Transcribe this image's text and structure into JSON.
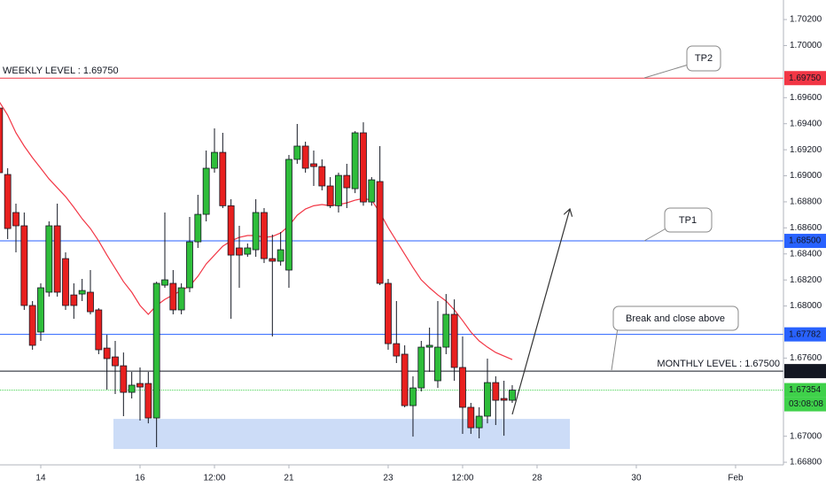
{
  "chart_data": {
    "type": "candlestick",
    "categories": [
      null,
      null,
      null,
      null,
      null,
      "14",
      null,
      null,
      null,
      null,
      null,
      null,
      null,
      null,
      null,
      null,
      null,
      "16",
      null,
      null,
      null,
      null,
      null,
      null,
      null,
      null,
      "12:00",
      null,
      null,
      null,
      null,
      null,
      null,
      null,
      null,
      "21",
      null,
      null,
      null,
      null,
      null,
      null,
      null,
      null,
      null,
      null,
      null,
      "23",
      null,
      null,
      null,
      null,
      null,
      null,
      null,
      null,
      "12:00",
      null,
      null,
      null,
      null,
      null,
      null,
      null,
      null,
      "28",
      null,
      null,
      null,
      null,
      null,
      null,
      null,
      null,
      null,
      null,
      null,
      "30",
      null,
      null,
      null,
      null,
      null,
      null,
      null,
      null,
      null,
      null,
      null,
      "Feb",
      null,
      null,
      null,
      null,
      null
    ],
    "open": [
      1.6952,
      1.6901,
      1.68718,
      1.68616,
      1.68004,
      1.678,
      1.68106,
      1.68616,
      1.68364,
      1.68085,
      1.68092,
      1.68106,
      1.6797,
      1.67677,
      1.67609,
      1.67541,
      1.67337,
      1.67405,
      1.67405,
      1.6714,
      1.6816,
      1.68174,
      1.6797,
      1.6814,
      1.68493,
      1.68704,
      1.69058,
      1.6918,
      1.6877,
      1.68446,
      1.68398,
      1.68432,
      1.68718,
      1.68364,
      1.68344,
      1.68276,
      1.69126,
      1.69228,
      1.69092,
      1.69071,
      1.68922,
      1.6877,
      1.69003,
      1.68901,
      1.6933,
      1.68799,
      1.68956,
      1.68174,
      1.67711,
      1.6763,
      1.67235,
      1.67371,
      1.67684,
      1.67426,
      1.67684,
      1.67936,
      1.67528,
      1.67222,
      1.67065,
      1.67154,
      1.67412,
      1.6729,
      1.67276,
      null,
      null,
      null,
      null,
      null,
      null,
      null,
      null,
      null,
      null,
      null,
      null,
      null,
      null,
      null,
      null,
      null,
      null,
      null,
      null,
      null,
      null,
      null,
      null,
      null,
      null,
      null,
      null,
      null,
      null,
      null,
      null
    ],
    "high": [
      1.69547,
      1.69058,
      1.68786,
      1.68718,
      1.68038,
      1.68174,
      1.6865,
      1.68786,
      1.68412,
      1.68174,
      1.68208,
      1.68276,
      1.67983,
      1.67779,
      1.67732,
      1.67643,
      1.67494,
      1.67528,
      1.67494,
      1.68187,
      1.68718,
      1.68276,
      1.68174,
      1.68684,
      1.68854,
      1.69194,
      1.69364,
      1.6933,
      1.6882,
      1.68616,
      1.6848,
      1.6882,
      1.68752,
      1.68548,
      1.68568,
      1.6916,
      1.69398,
      1.69262,
      1.69194,
      1.69126,
      1.6899,
      1.69024,
      1.69092,
      1.69343,
      1.69411,
      1.6899,
      1.69228,
      1.68208,
      1.68038,
      1.67698,
      1.6746,
      1.67732,
      1.67834,
      1.68038,
      1.68092,
      1.68051,
      1.67766,
      1.67256,
      1.67222,
      1.67596,
      1.6746,
      1.67426,
      1.67392,
      null,
      null,
      null,
      null,
      null,
      null,
      null,
      null,
      null,
      null,
      null,
      null,
      null,
      null,
      null,
      null,
      null,
      null,
      null,
      null,
      null,
      null,
      null,
      null,
      null,
      null,
      null,
      null,
      null,
      null,
      null,
      null
    ],
    "low": [
      1.6899,
      1.68514,
      1.68412,
      1.6797,
      1.67664,
      1.67732,
      1.68072,
      1.68072,
      1.6797,
      1.67902,
      1.68038,
      1.67936,
      1.6763,
      1.67358,
      1.67324,
      1.67154,
      1.6729,
      1.6712,
      1.67099,
      1.66916,
      1.6814,
      1.67936,
      1.67936,
      1.68106,
      1.68446,
      1.6865,
      1.69024,
      1.68752,
      1.67902,
      1.6814,
      1.68378,
      1.68378,
      1.6833,
      1.67766,
      1.6831,
      1.6814,
      1.69092,
      1.69024,
      1.68922,
      1.68888,
      1.68752,
      1.68718,
      1.68752,
      1.68867,
      1.6877,
      1.6877,
      1.6816,
      1.67664,
      1.67562,
      1.67222,
      1.66997,
      1.67344,
      1.67494,
      1.67371,
      1.6763,
      1.67426,
      1.67018,
      1.67018,
      1.66984,
      1.67099,
      1.67086,
      1.67004,
      1.67256,
      null,
      null,
      null,
      null,
      null,
      null,
      null,
      null,
      null,
      null,
      null,
      null,
      null,
      null,
      null,
      null,
      null,
      null,
      null,
      null,
      null,
      null,
      null,
      null,
      null,
      null,
      null,
      null,
      null,
      null,
      null,
      null
    ],
    "close": [
      1.69024,
      1.68595,
      1.68616,
      1.68004,
      1.67698,
      1.6814,
      1.68616,
      1.68106,
      1.68004,
      1.68004,
      1.68119,
      1.67956,
      1.67664,
      1.67596,
      1.67541,
      1.67337,
      1.67392,
      1.67378,
      1.6714,
      1.68174,
      1.68201,
      1.6797,
      1.6814,
      1.68493,
      1.68704,
      1.69058,
      1.6918,
      1.6877,
      1.68391,
      1.68391,
      1.68446,
      1.68718,
      1.68364,
      1.68344,
      1.68432,
      1.69126,
      1.69228,
      1.69058,
      1.69071,
      1.68922,
      1.6877,
      1.69003,
      1.68908,
      1.6933,
      1.68799,
      1.68969,
      1.68174,
      1.67711,
      1.67616,
      1.67235,
      1.67371,
      1.67684,
      1.67698,
      1.67684,
      1.67936,
      1.67528,
      1.67222,
      1.67065,
      1.67154,
      1.67412,
      1.67276,
      1.67276,
      1.67354,
      null,
      null,
      null,
      null,
      null,
      null,
      null,
      null,
      null,
      null,
      null,
      null,
      null,
      null,
      null,
      null,
      null,
      null,
      null,
      null,
      null,
      null,
      null,
      null,
      null,
      null,
      null,
      null,
      null,
      null,
      null,
      null
    ],
    "up_color": "#2ebd3a",
    "down_color": "#e8201f",
    "ma": {
      "color": "#f23645",
      "values": [
        1.69568,
        1.69466,
        1.6933,
        1.69228,
        1.69139,
        1.69058,
        1.68976,
        1.68908,
        1.6884,
        1.68758,
        1.6867,
        1.68595,
        1.685,
        1.68391,
        1.68289,
        1.68187,
        1.68106,
        1.68004,
        1.67936,
        1.68004,
        1.68051,
        1.68085,
        1.68119,
        1.68153,
        1.68228,
        1.68323,
        1.68391,
        1.68459,
        1.685,
        1.68527,
        1.68541,
        1.68541,
        1.68527,
        1.68534,
        1.68561,
        1.68616,
        1.68697,
        1.68745,
        1.6877,
        1.68779,
        1.6877,
        1.68779,
        1.68792,
        1.68813,
        1.68826,
        1.68813,
        1.68718,
        1.68602,
        1.685,
        1.68398,
        1.68296,
        1.68201,
        1.6814,
        1.68085,
        1.68038,
        1.6797,
        1.67888,
        1.678,
        1.67732,
        1.67684,
        1.67643,
        1.67616,
        1.67589,
        null,
        null,
        null,
        null,
        null,
        null,
        null,
        null,
        null,
        null,
        null,
        null,
        null,
        null,
        null,
        null,
        null,
        null,
        null,
        null,
        null,
        null,
        null,
        null,
        null,
        null,
        null,
        null,
        null,
        null,
        null,
        null
      ]
    },
    "ylim": [
      1.6678,
      1.7035
    ],
    "yticks": [
      {
        "value": 1.702,
        "label": "1.70200"
      },
      {
        "value": 1.7,
        "label": "1.70000"
      },
      {
        "value": 1.696,
        "label": "1.69600"
      },
      {
        "value": 1.694,
        "label": "1.69400"
      },
      {
        "value": 1.692,
        "label": "1.69200"
      },
      {
        "value": 1.69,
        "label": "1.69000"
      },
      {
        "value": 1.688,
        "label": "1.68800"
      },
      {
        "value": 1.686,
        "label": "1.68600"
      },
      {
        "value": 1.684,
        "label": "1.68400"
      },
      {
        "value": 1.682,
        "label": "1.68200"
      },
      {
        "value": 1.68,
        "label": "1.68000"
      },
      {
        "value": 1.676,
        "label": "1.67600"
      },
      {
        "value": 1.67,
        "label": "1.67000"
      },
      {
        "value": 1.668,
        "label": "1.66800"
      }
    ],
    "levels": [
      {
        "value": 1.6975,
        "label": "1.69750",
        "color": "#f23645",
        "text": "WEEKLY LEVEL : 1.69750",
        "text_side": "left"
      },
      {
        "value": 1.685,
        "label": "1.68500",
        "color": "#2962ff"
      },
      {
        "value": 1.67782,
        "label": "1.67782",
        "color": "#2962ff"
      },
      {
        "value": 1.675,
        "label": "1.67500",
        "color": "#131722",
        "text": "MONTHLY LEVEL : 1.67500",
        "text_side": "right"
      }
    ],
    "current_price": {
      "value": 1.67354,
      "label": "1.67354",
      "color": "#3fd14a",
      "countdown": "03:08:08"
    },
    "zone": {
      "low": 1.66902,
      "high": 1.67133,
      "color": "#c3d6f6"
    },
    "callouts": [
      "TP2",
      "TP1",
      "Break and close above"
    ]
  }
}
